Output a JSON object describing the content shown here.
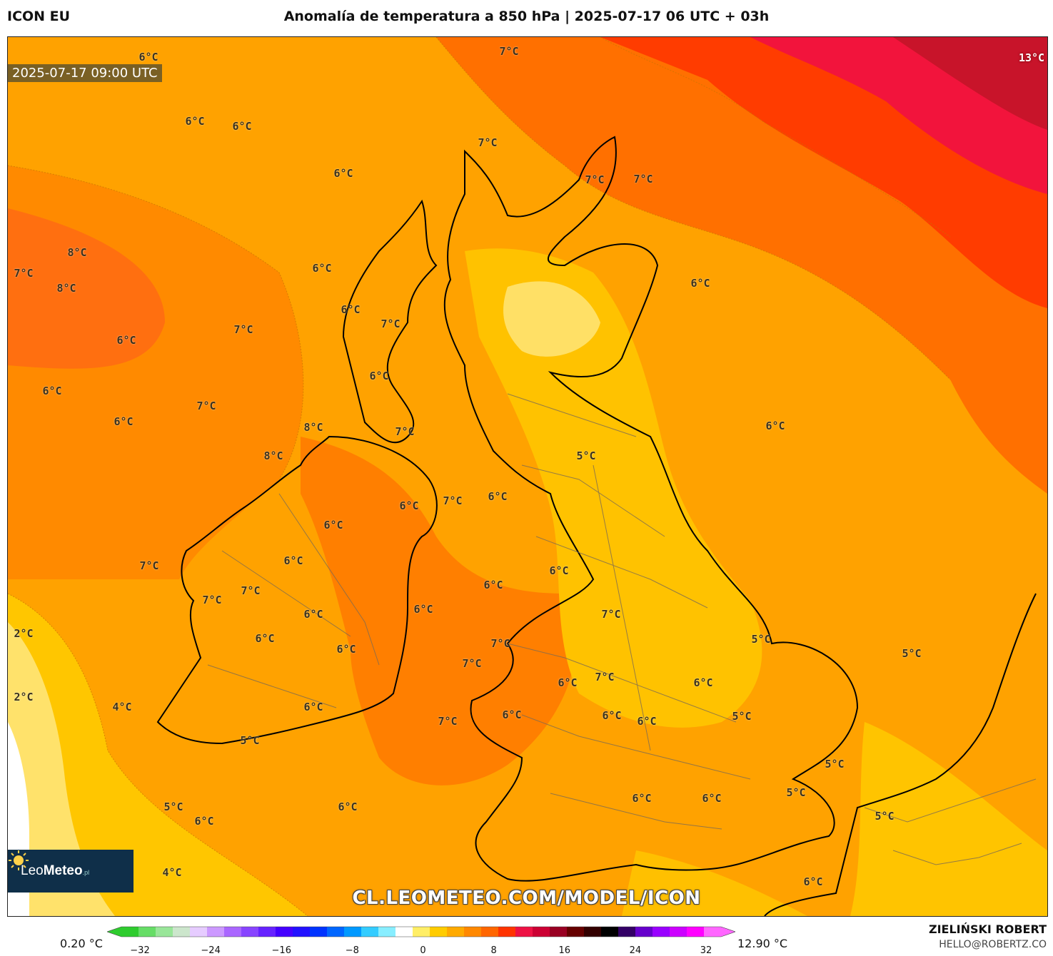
{
  "header": {
    "model": "ICON EU",
    "title": "Anomalía de temperatura a 850 hPa | 2025-07-17 06 UTC + 03h"
  },
  "map": {
    "valid_time": "2025-07-17 09:00 UTC",
    "site_url": "CL.LEOMETEO.COM/MODEL/ICON",
    "logo": {
      "brand_light": "Leo",
      "brand_bold": "Meteo",
      "suffix": ".pl"
    },
    "contour_labels": [
      {
        "text": "6°C"
      },
      {
        "text": "7°C"
      },
      {
        "text": "13°C"
      },
      {
        "text": "6°C"
      },
      {
        "text": "6°C"
      },
      {
        "text": "7°C"
      },
      {
        "text": "6°C"
      },
      {
        "text": "7°C"
      },
      {
        "text": "7°C"
      },
      {
        "text": "8°C"
      },
      {
        "text": "7°C"
      },
      {
        "text": "8°C"
      },
      {
        "text": "6°C"
      },
      {
        "text": "6°C"
      },
      {
        "text": "6°C"
      },
      {
        "text": "7°C"
      },
      {
        "text": "7°C"
      },
      {
        "text": "6°C"
      },
      {
        "text": "6°C"
      },
      {
        "text": "6°C"
      },
      {
        "text": "7°C"
      },
      {
        "text": "6°C"
      },
      {
        "text": "6°C"
      },
      {
        "text": "8°C"
      },
      {
        "text": "7°C"
      },
      {
        "text": "8°C"
      },
      {
        "text": "5°C"
      },
      {
        "text": "6°C"
      },
      {
        "text": "7°C"
      },
      {
        "text": "6°C"
      },
      {
        "text": "6°C"
      },
      {
        "text": "6°C"
      },
      {
        "text": "7°C"
      },
      {
        "text": "6°C"
      },
      {
        "text": "6°C"
      },
      {
        "text": "7°C"
      },
      {
        "text": "7°C"
      },
      {
        "text": "6°C"
      },
      {
        "text": "6°C"
      },
      {
        "text": "7°C"
      },
      {
        "text": "6°C"
      },
      {
        "text": "5°C"
      },
      {
        "text": "6°C"
      },
      {
        "text": "2°C"
      },
      {
        "text": "7°C"
      },
      {
        "text": "5°C"
      },
      {
        "text": "2°C"
      },
      {
        "text": "4°C"
      },
      {
        "text": "6°C"
      },
      {
        "text": "7°C"
      },
      {
        "text": "7°C"
      },
      {
        "text": "6°C"
      },
      {
        "text": "7°C"
      },
      {
        "text": "6°C"
      },
      {
        "text": "6°C"
      },
      {
        "text": "6°C"
      },
      {
        "text": "5°C"
      },
      {
        "text": "6°C"
      },
      {
        "text": "5°C"
      },
      {
        "text": "5°C"
      },
      {
        "text": "6°C"
      },
      {
        "text": "6°C"
      },
      {
        "text": "6°C"
      },
      {
        "text": "6°C"
      },
      {
        "text": "5°C"
      },
      {
        "text": "5°C"
      },
      {
        "text": "5°C"
      },
      {
        "text": "4°C"
      },
      {
        "text": "6°C"
      }
    ]
  },
  "colorbar": {
    "min_label": "0.20 °C",
    "max_label": "12.90 °C",
    "ticks": [
      "−32",
      "−24",
      "−16",
      "−8",
      "0",
      "8",
      "16",
      "24",
      "32"
    ],
    "colors": [
      "#2ecc2e",
      "#66dd66",
      "#99e699",
      "#cce6cc",
      "#e6ccff",
      "#cc99ff",
      "#aa66ff",
      "#8844ff",
      "#6622ff",
      "#4400ff",
      "#2211ff",
      "#0033ff",
      "#0066ff",
      "#0099ff",
      "#33ccff",
      "#88eeff",
      "#ffffff",
      "#ffee66",
      "#ffcc00",
      "#ffaa00",
      "#ff8800",
      "#ff6600",
      "#ff3300",
      "#ee1144",
      "#cc0033",
      "#990022",
      "#660000",
      "#330000",
      "#000000",
      "#330066",
      "#6600cc",
      "#9900ff",
      "#cc00ff",
      "#ff00ff",
      "#ff66ff"
    ]
  },
  "credits": {
    "author": "ZIELIŃSKI ROBERT",
    "email": "HELLO@ROBERTZ.CO"
  }
}
